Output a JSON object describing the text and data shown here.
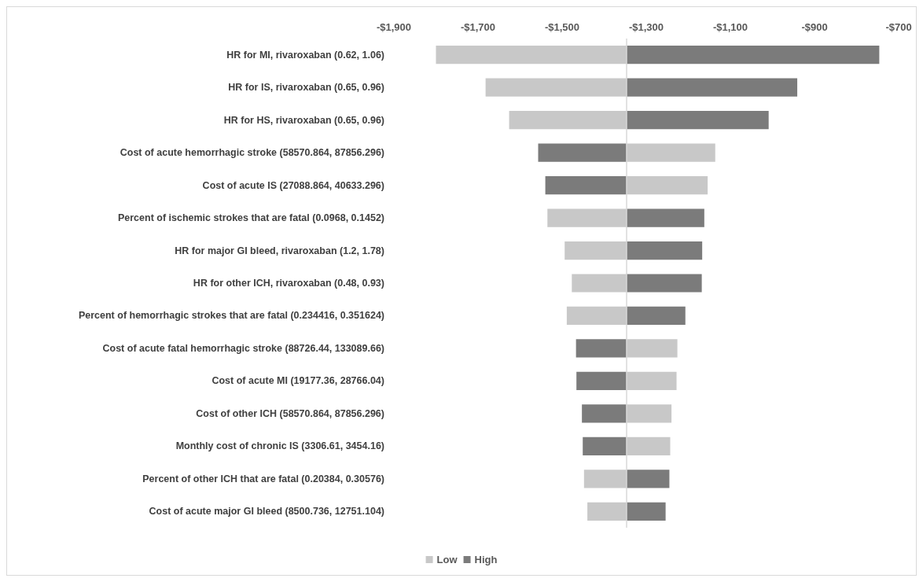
{
  "chart_data": {
    "type": "bar",
    "orientation": "horizontal",
    "categories": [
      "HR for MI, rivaroxaban (0.62, 1.06)",
      "HR for IS, rivaroxaban (0.65, 0.96)",
      "HR for HS, rivaroxaban (0.65, 0.96)",
      "Cost of acute hemorrhagic stroke (58570.864, 87856.296)",
      "Cost of acute IS (27088.864, 40633.296)",
      "Percent of ischemic strokes that are fatal (0.0968, 0.1452)",
      "HR for major GI bleed, rivaroxaban (1.2, 1.78)",
      "HR for other ICH, rivaroxaban (0.48, 0.93)",
      "Percent of hemorrhagic strokes that are fatal (0.234416, 0.351624)",
      "Cost of acute fatal hemorrhagic stroke (88726.44, 133089.66)",
      "Cost of acute MI (19177.36, 28766.04)",
      "Cost of other ICH (58570.864, 87856.296)",
      "Monthly cost of chronic IS (3306.61, 3454.16)",
      "Percent of other ICH that are fatal (0.20384, 0.30576)",
      "Cost of acute major GI bleed (8500.736, 12751.104)"
    ],
    "series": [
      {
        "name": "Low",
        "color": "#c8c8c8",
        "base": [
          -1347,
          -1347,
          -1347,
          -1347,
          -1347,
          -1347,
          -1347,
          -1347,
          -1347,
          -1347,
          -1347,
          -1347,
          -1347,
          -1347,
          -1347
        ],
        "values": [
          -453,
          -335,
          -279,
          211,
          193,
          -188,
          -147,
          -130,
          -142,
          121,
          119,
          107,
          104,
          -101,
          -93
        ]
      },
      {
        "name": "High",
        "color": "#7b7b7b",
        "base": [
          -1347,
          -1347,
          -1347,
          -1347,
          -1347,
          -1347,
          -1347,
          -1347,
          -1347,
          -1347,
          -1347,
          -1347,
          -1347,
          -1347,
          -1347
        ],
        "values": [
          601,
          406,
          338,
          -210,
          -193,
          185,
          180,
          179,
          140,
          -120,
          -119,
          -106,
          -104,
          102,
          93
        ]
      }
    ],
    "xlim": [
      -1900,
      -700
    ],
    "xticks": [
      {
        "value": -1900,
        "label": "-$1,900"
      },
      {
        "value": -1700,
        "label": "-$1,700"
      },
      {
        "value": -1500,
        "label": "-$1,500"
      },
      {
        "value": -1300,
        "label": "-$1,300"
      },
      {
        "value": -1100,
        "label": "-$1,100"
      },
      {
        "value": -900,
        "label": "-$900"
      },
      {
        "value": -700,
        "label": "-$700"
      }
    ],
    "ref_lines": [
      {
        "axis": "x",
        "value": -1347,
        "color": "#d9d9d9"
      }
    ],
    "grid": false,
    "legend": "bottom"
  }
}
